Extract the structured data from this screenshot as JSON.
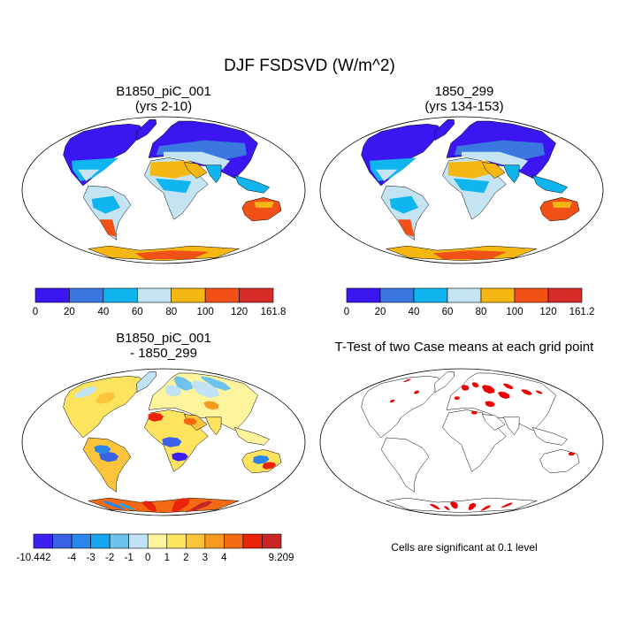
{
  "figure": {
    "title": "DJF FSDSVD (W/m^2)",
    "footnote": "Cells are significant at 0.1 level"
  },
  "colors": {
    "abs_scale": [
      "#3b16f0",
      "#3a78e0",
      "#10b4ef",
      "#c4e4f4",
      "#f4b713",
      "#f15116",
      "#d62c27"
    ],
    "diff_scale": [
      "#3c20f0",
      "#3a62e4",
      "#2a86ec",
      "#15a6ef",
      "#6cc4ee",
      "#bfe2f6",
      "#fff49e",
      "#fde35e",
      "#fcc43a",
      "#f79a22",
      "#f46a14",
      "#e9240b",
      "#c92524"
    ],
    "ttest": "#ee0000",
    "ocean": "#ffffff",
    "coast": "#000000"
  },
  "chart_data": [
    {
      "type": "heatmap",
      "title": "B1850_piC_001",
      "subtitle": "(yrs 2-10)",
      "colorbar": {
        "ticks": [
          "0",
          "20",
          "40",
          "60",
          "80",
          "100",
          "120",
          "161.8"
        ],
        "boundaries": [
          0,
          20,
          40,
          60,
          80,
          100,
          120,
          161.8
        ]
      },
      "regions": [
        {
          "region": "Arctic / high-latitude NH land",
          "value": 10
        },
        {
          "region": "Mid-latitude NH land",
          "value": 50
        },
        {
          "region": "Sahara / Arabia",
          "value": 90
        },
        {
          "region": "Tropics",
          "value": 70
        },
        {
          "region": "Australia",
          "value": 110
        },
        {
          "region": "Southern South America",
          "value": 110
        },
        {
          "region": "Antarctica",
          "value": 110
        }
      ]
    },
    {
      "type": "heatmap",
      "title": "1850_299",
      "subtitle": "(yrs 134-153)",
      "colorbar": {
        "ticks": [
          "0",
          "20",
          "40",
          "60",
          "80",
          "100",
          "120",
          "161.2"
        ],
        "boundaries": [
          0,
          20,
          40,
          60,
          80,
          100,
          120,
          161.2
        ]
      },
      "regions": [
        {
          "region": "Arctic / high-latitude NH land",
          "value": 10
        },
        {
          "region": "Mid-latitude NH land",
          "value": 50
        },
        {
          "region": "Sahara / Arabia",
          "value": 90
        },
        {
          "region": "Tropics",
          "value": 70
        },
        {
          "region": "Australia",
          "value": 110
        },
        {
          "region": "Southern South America",
          "value": 110
        },
        {
          "region": "Antarctica",
          "value": 110
        }
      ]
    },
    {
      "type": "heatmap",
      "title": "B1850_piC_001",
      "subtitle": "- 1850_299",
      "colorbar": {
        "ticks": [
          "-10.442",
          "-4",
          "-3",
          "-2",
          "-1",
          "0",
          "1",
          "2",
          "3",
          "4",
          "9.209"
        ],
        "boundaries": [
          -10.442,
          -5,
          -4,
          -3,
          -2,
          -1,
          0,
          1,
          2,
          3,
          4,
          5,
          9.209
        ]
      },
      "regions": [
        {
          "region": "Northern Eurasia",
          "value": -0.5
        },
        {
          "region": "North America",
          "value": 0.5
        },
        {
          "region": "Southern Africa",
          "value": -2
        },
        {
          "region": "Amazonia",
          "value": -1
        },
        {
          "region": "Antarctica",
          "value": 3
        }
      ]
    },
    {
      "type": "heatmap",
      "title": "T-Test of two Case means at each grid point",
      "subtitle": "",
      "significance_level": 0.1,
      "regions": [
        {
          "region": "Northern Eurasia",
          "significant": true
        },
        {
          "region": "Antarctic coast",
          "significant": true
        }
      ]
    }
  ]
}
